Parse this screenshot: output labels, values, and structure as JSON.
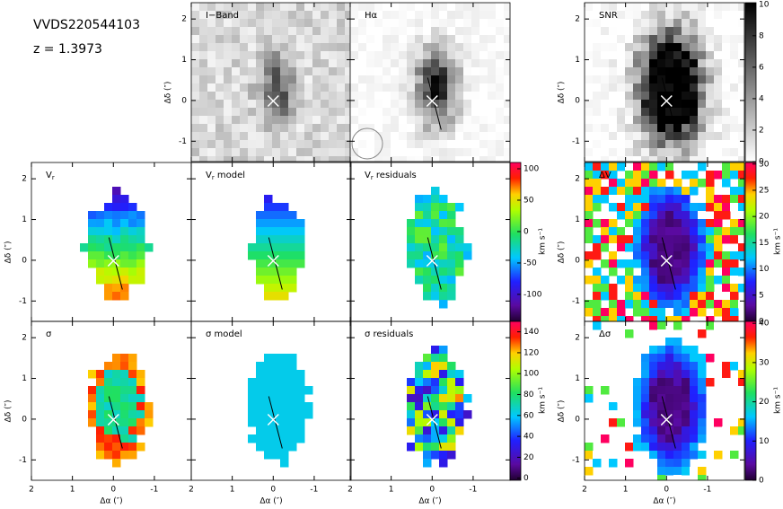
{
  "header": {
    "object": "VVDS220544103",
    "redshift": "z = 1.3973"
  },
  "axes": {
    "x_label": "Δα (″)",
    "y_label": "Δδ (″)",
    "xlim": [
      2,
      -1.9
    ],
    "ylim": [
      -1.5,
      2.4
    ],
    "xticks": [
      2,
      1,
      0,
      -1
    ],
    "yticks": [
      -1,
      0,
      1,
      2
    ]
  },
  "panels": [
    {
      "text": "I−Band"
    },
    {
      "text": "Hα"
    },
    {
      "text": "SNR"
    },
    {
      "text": "V",
      "sub": "r"
    },
    {
      "text": "V",
      "sub": "r",
      "suffix": " model"
    },
    {
      "text": "V",
      "sub": "r",
      "suffix": " residuals"
    },
    {
      "text": "ΔV"
    },
    {
      "text": "σ"
    },
    {
      "text": "σ model"
    },
    {
      "text": "σ residuals"
    },
    {
      "text": "Δσ"
    }
  ],
  "colorbars": [
    {
      "lim": [
        0,
        10.1
      ],
      "ticks": [
        0,
        2,
        4,
        6,
        8,
        10
      ]
    },
    {
      "lim": [
        -143,
        110
      ],
      "ticks": [
        -100,
        -50,
        0,
        50,
        100
      ],
      "label": "km s⁻¹"
    },
    {
      "lim": [
        0,
        30.3
      ],
      "ticks": [
        0,
        5,
        10,
        15,
        20,
        25,
        30
      ],
      "label": "km s⁻¹"
    },
    {
      "lim": [
        -2,
        150
      ],
      "ticks": [
        0,
        20,
        40,
        60,
        80,
        100,
        120,
        140
      ],
      "label": "km s⁻¹"
    },
    {
      "lim": [
        0,
        40.5
      ],
      "ticks": [
        0,
        10,
        20,
        30,
        40
      ],
      "label": "km s⁻¹"
    }
  ]
}
